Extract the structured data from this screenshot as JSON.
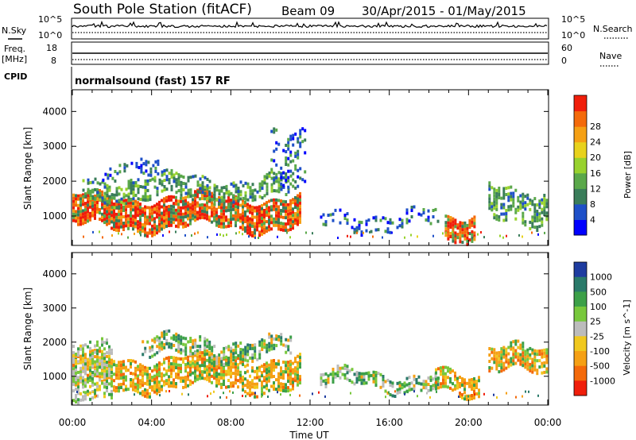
{
  "header": {
    "station": "South Pole Station (fitACF)",
    "beam": "Beam 09",
    "dates": "30/Apr/2015 - 01/May/2015"
  },
  "top_panels": {
    "nsky_label": "N.Sky",
    "nsearch_label": "N.Search",
    "freq_label_1": "Freq.",
    "freq_label_2": "[MHz]",
    "nave_label": "Nave",
    "cpid_label": "CPID",
    "noise_ticks_left": [
      "10^5",
      "10^0"
    ],
    "noise_ticks_right": [
      "10^5",
      "10^0"
    ],
    "freq_ticks": [
      "18",
      "8"
    ],
    "nave_ticks": [
      "60",
      "0"
    ],
    "cpid_text": "normalsound (fast) 157 RF"
  },
  "chart_data": [
    {
      "type": "heatmap",
      "title": "",
      "xlabel": "",
      "ylabel": "Slant Range [km]",
      "xlim_hours": [
        0,
        24
      ],
      "ylim_km": [
        180,
        4600
      ],
      "y_ticks": [
        "1000",
        "2000",
        "3000",
        "4000"
      ],
      "colorbar": {
        "label": "Power [dB]",
        "ticks": [
          "4",
          "8",
          "12",
          "16",
          "20",
          "24",
          "28"
        ],
        "colors": [
          "#0000ff",
          "#1e50c8",
          "#3a7d5a",
          "#5aa84a",
          "#98d22e",
          "#e8d21c",
          "#f5a014",
          "#f46a0a",
          "#f01e0a"
        ]
      },
      "echo_regions": [
        {
          "t0": 0.0,
          "t1": 11.5,
          "r0": 700,
          "r1": 1550,
          "level": "strong"
        },
        {
          "t0": 0.5,
          "t1": 11.0,
          "r0": 1550,
          "r1": 2100,
          "level": "medium"
        },
        {
          "t0": 1.5,
          "t1": 4.5,
          "r0": 2100,
          "r1": 2500,
          "level": "weak"
        },
        {
          "t0": 10.0,
          "t1": 11.8,
          "r0": 2000,
          "r1": 3600,
          "level": "weak"
        },
        {
          "t0": 12.5,
          "t1": 18.5,
          "r0": 700,
          "r1": 1100,
          "level": "weak"
        },
        {
          "t0": 18.8,
          "t1": 20.3,
          "r0": 450,
          "r1": 1100,
          "level": "strong"
        },
        {
          "t0": 21.0,
          "t1": 24.0,
          "r0": 800,
          "r1": 1800,
          "level": "medium"
        }
      ]
    },
    {
      "type": "heatmap",
      "title": "",
      "xlabel": "Time UT",
      "ylabel": "Slant Range [km]",
      "xlim_hours": [
        0,
        24
      ],
      "ylim_km": [
        180,
        4600
      ],
      "x_ticks": [
        "00:00",
        "04:00",
        "08:00",
        "12:00",
        "16:00",
        "20:00",
        "00:00"
      ],
      "y_ticks": [
        "1000",
        "2000",
        "3000",
        "4000"
      ],
      "colorbar": {
        "label": "Velocity [m s^-1]",
        "ticks": [
          "1000",
          "500",
          "100",
          "25",
          "-25",
          "-100",
          "-500",
          "-1000"
        ],
        "colors": [
          "#1e3ca0",
          "#2a7a6a",
          "#3ca048",
          "#78c83c",
          "#bcbcbc",
          "#f0c81e",
          "#f5a014",
          "#f46a0a",
          "#f01e0a"
        ]
      },
      "echo_regions": [
        {
          "t0": 0.0,
          "t1": 11.5,
          "r0": 700,
          "r1": 1550,
          "level": "negative"
        },
        {
          "t0": 3.5,
          "t1": 11.0,
          "r0": 1550,
          "r1": 2100,
          "level": "positive"
        },
        {
          "t0": 0.0,
          "t1": 2.0,
          "r0": 500,
          "r1": 2200,
          "level": "near-zero"
        },
        {
          "t0": 12.5,
          "t1": 18.5,
          "r0": 700,
          "r1": 1100,
          "level": "positive"
        },
        {
          "t0": 18.3,
          "t1": 20.5,
          "r0": 450,
          "r1": 1100,
          "level": "negative"
        },
        {
          "t0": 21.0,
          "t1": 24.0,
          "r0": 1100,
          "r1": 1800,
          "level": "negative"
        }
      ]
    }
  ]
}
